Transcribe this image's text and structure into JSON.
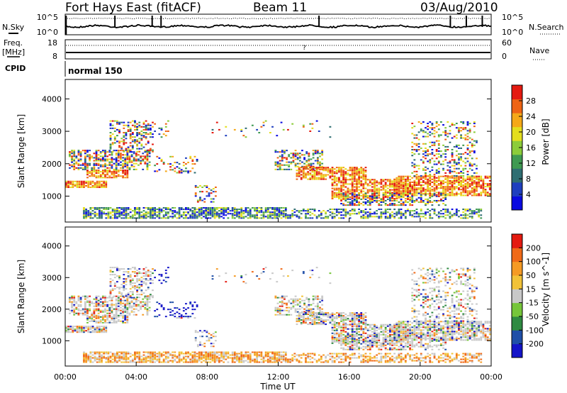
{
  "header": {
    "station": "Fort Hays East (fitACF)",
    "beam": "Beam 11",
    "date": "03/Aug/2010"
  },
  "summary": {
    "nsky_label": "N.Sky",
    "nsearch_label": "N.Search",
    "noise_ticks": [
      "10^5",
      "10^0"
    ],
    "freq_label": "Freq.",
    "freq_unit": "[MHz]",
    "freq_ticks": [
      "18",
      "8"
    ],
    "nave_label": "Nave",
    "nave_ticks": [
      "60",
      "0"
    ],
    "cpid_label": "CPID",
    "cpid_value": "normal 150",
    "freq_marker": "?"
  },
  "chart_data": [
    {
      "type": "heatmap",
      "name": "power-panel",
      "ylabel": "Slant Range [km]",
      "xlabel": "",
      "ylim": [
        200,
        4600
      ],
      "yticks": [
        1000,
        2000,
        3000,
        4000
      ],
      "xticks": [
        "00:00",
        "04:00",
        "08:00",
        "12:00",
        "16:00",
        "20:00",
        "00:00"
      ],
      "xlim_hours": [
        0,
        24
      ],
      "colorbar": {
        "label": "Power [dB]",
        "ticks": [
          "4",
          "8",
          "12",
          "16",
          "20",
          "24",
          "28"
        ],
        "colors": [
          "#0a0ae0",
          "#1f3fbf",
          "#2f6e72",
          "#3f9a52",
          "#8ccc3a",
          "#e3de1e",
          "#f5a818",
          "#ee6414",
          "#e41a10"
        ]
      }
    },
    {
      "type": "heatmap",
      "name": "velocity-panel",
      "ylabel": "Slant Range [km]",
      "xlabel": "Time UT",
      "ylim": [
        200,
        4600
      ],
      "yticks": [
        1000,
        2000,
        3000,
        4000
      ],
      "xticks": [
        "00:00",
        "04:00",
        "08:00",
        "12:00",
        "16:00",
        "20:00",
        "00:00"
      ],
      "xlim_hours": [
        0,
        24
      ],
      "colorbar": {
        "label": "Velocity [m s^-1]",
        "ticks": [
          "200",
          "100",
          "50",
          "15",
          "-15",
          "-50",
          "-100",
          "-200"
        ],
        "colors": [
          "#1414c8",
          "#1f4fa8",
          "#2f8a42",
          "#76c63a",
          "#c8c8c8",
          "#f2c238",
          "#f59a24",
          "#f06a18",
          "#e41a10"
        ]
      }
    }
  ]
}
